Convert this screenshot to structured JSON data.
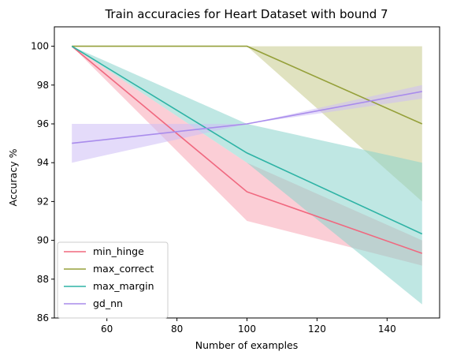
{
  "chart_data": {
    "type": "line",
    "title": "Train accuracies for Heart Dataset with bound 7",
    "xlabel": "Number of examples",
    "ylabel": "Accuracy %",
    "xlim": [
      45,
      155
    ],
    "ylim": [
      86,
      101
    ],
    "xticks": [
      60,
      80,
      100,
      120,
      140
    ],
    "yticks": [
      86,
      88,
      90,
      92,
      94,
      96,
      98,
      100
    ],
    "x": [
      50,
      100,
      150
    ],
    "grid": false,
    "legend_position": "lower-left",
    "series": [
      {
        "name": "min_hinge",
        "color": "#f0687f",
        "fill": "#f7a5b5",
        "values": [
          100,
          92.5,
          89.33
        ],
        "lower": [
          100,
          91.0,
          88.7
        ],
        "upper": [
          100,
          94.0,
          90.0
        ]
      },
      {
        "name": "max_correct",
        "color": "#95a03a",
        "fill": "#c6ca8c",
        "values": [
          100,
          100,
          96.0
        ],
        "lower": [
          100,
          100,
          92.0
        ],
        "upper": [
          100,
          100,
          100
        ]
      },
      {
        "name": "max_margin",
        "color": "#2eb3a5",
        "fill": "#8ad3cc",
        "values": [
          100,
          94.5,
          90.33
        ],
        "lower": [
          100,
          94.0,
          86.7
        ],
        "upper": [
          100,
          96.0,
          94.0
        ]
      },
      {
        "name": "gd_nn",
        "color": "#a98cec",
        "fill": "#cdbdf5",
        "values": [
          95.0,
          96.0,
          97.67
        ],
        "lower": [
          94.0,
          96.0,
          97.3
        ],
        "upper": [
          96.0,
          96.0,
          98.0
        ]
      }
    ]
  }
}
